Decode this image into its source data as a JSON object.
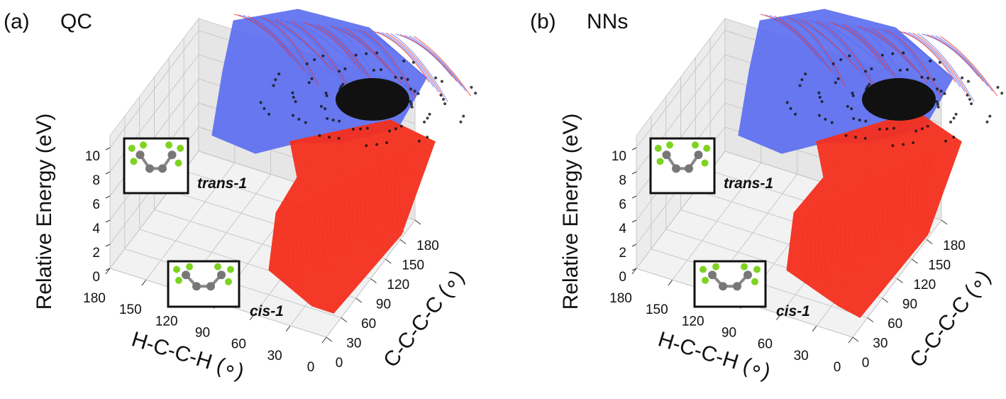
{
  "chart_data": [
    {
      "type": "scatter3d",
      "panel_label": "(a)",
      "title": "QC",
      "xlabel": "H-C-C-H (∘)",
      "ylabel": "C-C-C-C (∘)",
      "zlabel": "Relative Energy (eV)",
      "xlim": [
        0,
        180
      ],
      "ylim": [
        0,
        180
      ],
      "zlim": [
        0,
        11
      ],
      "xticks": [
        0,
        30,
        60,
        90,
        120,
        150,
        180
      ],
      "yticks": [
        0,
        30,
        60,
        90,
        120,
        150,
        180
      ],
      "zticks": [
        0,
        2,
        4,
        6,
        8,
        10
      ],
      "annotations": [
        "trans-1",
        "cis-1"
      ],
      "colors": [
        "#5a6cf0",
        "#f5301e",
        "#111111"
      ],
      "grid": true
    },
    {
      "type": "scatter3d",
      "panel_label": "(b)",
      "title": "NNs",
      "xlabel": "H-C-C-H (∘)",
      "ylabel": "C-C-C-C (∘)",
      "zlabel": "Relative Energy (eV)",
      "xlim": [
        0,
        180
      ],
      "ylim": [
        0,
        180
      ],
      "zlim": [
        0,
        11
      ],
      "xticks": [
        0,
        30,
        60,
        90,
        120,
        150,
        180
      ],
      "yticks": [
        0,
        30,
        60,
        90,
        120,
        150,
        180
      ],
      "zticks": [
        0,
        2,
        4,
        6,
        8,
        10
      ],
      "annotations": [
        "trans-1",
        "cis-1"
      ],
      "colors": [
        "#5a6cf0",
        "#f5301e",
        "#111111"
      ],
      "grid": true
    }
  ]
}
